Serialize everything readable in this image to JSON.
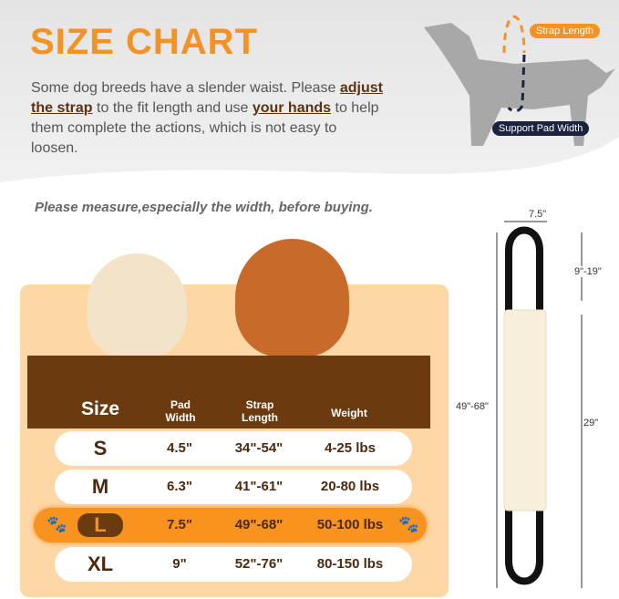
{
  "header": {
    "title": "SIZE CHART",
    "text_1": "Some dog breeds have a slender waist. Please ",
    "emph_1": "adjust the strap",
    "text_2": " to the fit length and use ",
    "emph_2": "your hands",
    "text_3": " to help them complete the actions, which is not easy to loosen."
  },
  "diagram": {
    "strap_label": "Strap Length",
    "pad_label": "Support Pad Width",
    "strap_color": "#f39325",
    "pad_label_color": "#1c2340"
  },
  "note": "Please measure,especially the width, before buying.",
  "table": {
    "headers": {
      "size": "Size",
      "pad": "Pad Width",
      "strap": "Strap Length",
      "weight": "Weight"
    },
    "rows": [
      {
        "size": "S",
        "pad": "4.5\"",
        "strap": "34\"-54\"",
        "weight": "4-25 lbs"
      },
      {
        "size": "M",
        "pad": "6.3\"",
        "strap": "41\"-61\"",
        "weight": "20-80 lbs"
      },
      {
        "size": "L",
        "pad": "7.5\"",
        "strap": "49\"-68\"",
        "weight": "50-100 lbs",
        "highlighted": true
      },
      {
        "size": "XL",
        "pad": "9\"",
        "strap": "52\"-76\"",
        "weight": "80-150 lbs"
      }
    ]
  },
  "product_dims": {
    "width": "7.5\"",
    "total_length": "49\"-68\"",
    "handle": "9\"-19\"",
    "pad_length": "29\""
  },
  "colors": {
    "accent": "#f39325",
    "brown": "#6b3a0f",
    "panel": "#fdd7a6"
  }
}
